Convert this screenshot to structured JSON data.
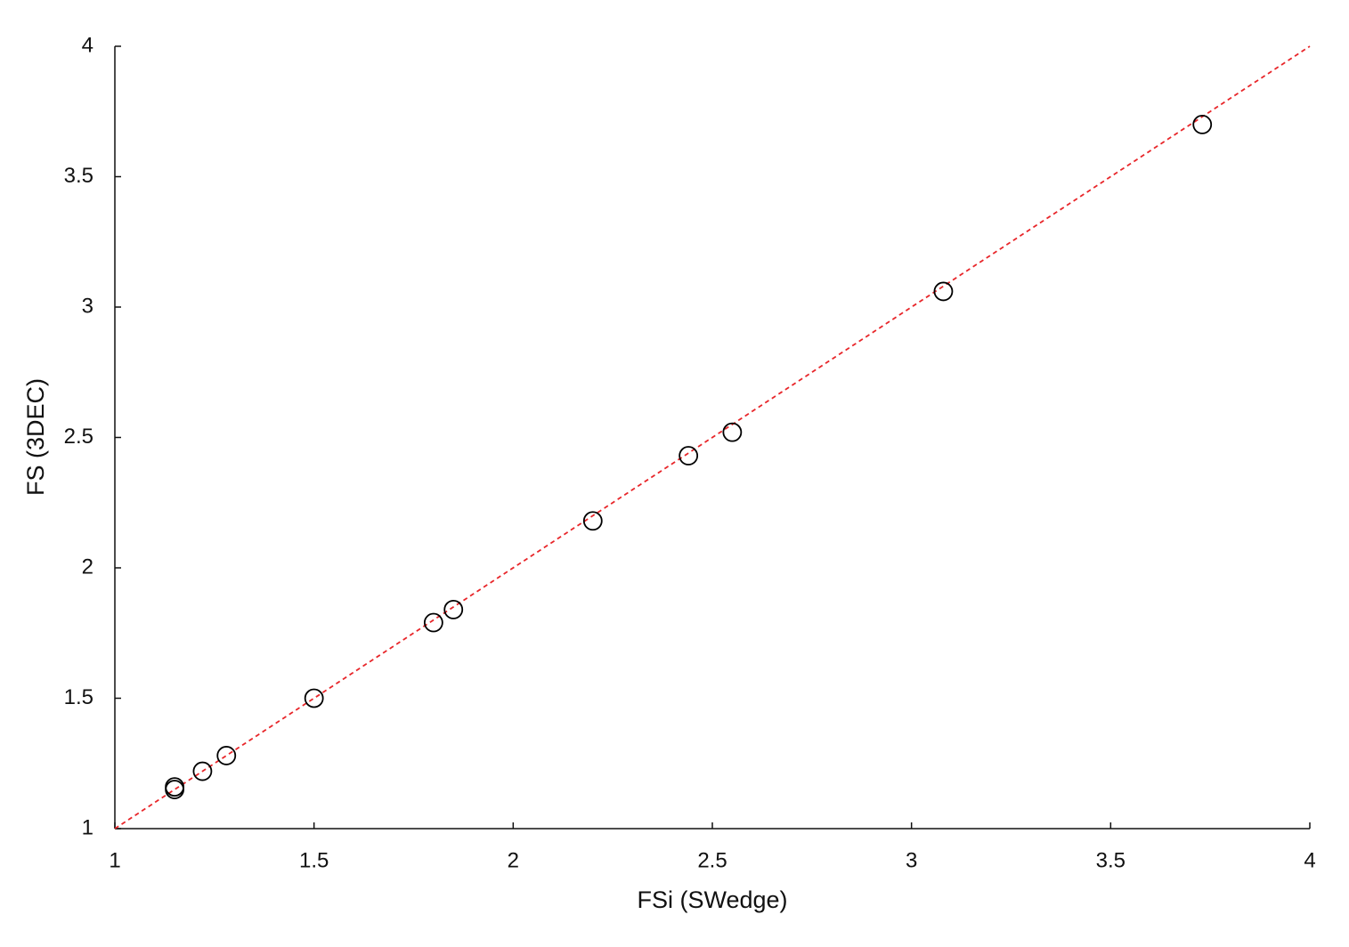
{
  "chart_data": {
    "type": "scatter",
    "xlabel": "FSi (SWedge)",
    "ylabel": "FS (3DEC)",
    "xlim": [
      1,
      4
    ],
    "ylim": [
      1,
      4
    ],
    "xticks": [
      1,
      1.5,
      2,
      2.5,
      3,
      3.5,
      4
    ],
    "yticks": [
      1,
      1.5,
      2,
      2.5,
      3,
      3.5,
      4
    ],
    "series": [
      {
        "type": "scatter",
        "color": "#000000",
        "x": [
          1.15,
          1.15,
          1.22,
          1.28,
          1.5,
          1.8,
          1.85,
          2.2,
          2.44,
          2.55,
          3.08,
          3.73
        ],
        "values": [
          1.15,
          1.16,
          1.22,
          1.28,
          1.5,
          1.79,
          1.84,
          2.18,
          2.43,
          2.52,
          3.06,
          3.7
        ]
      },
      {
        "type": "line",
        "color": "#e8262a",
        "dashed": true,
        "x": [
          1,
          4
        ],
        "values": [
          1,
          4
        ]
      }
    ]
  }
}
